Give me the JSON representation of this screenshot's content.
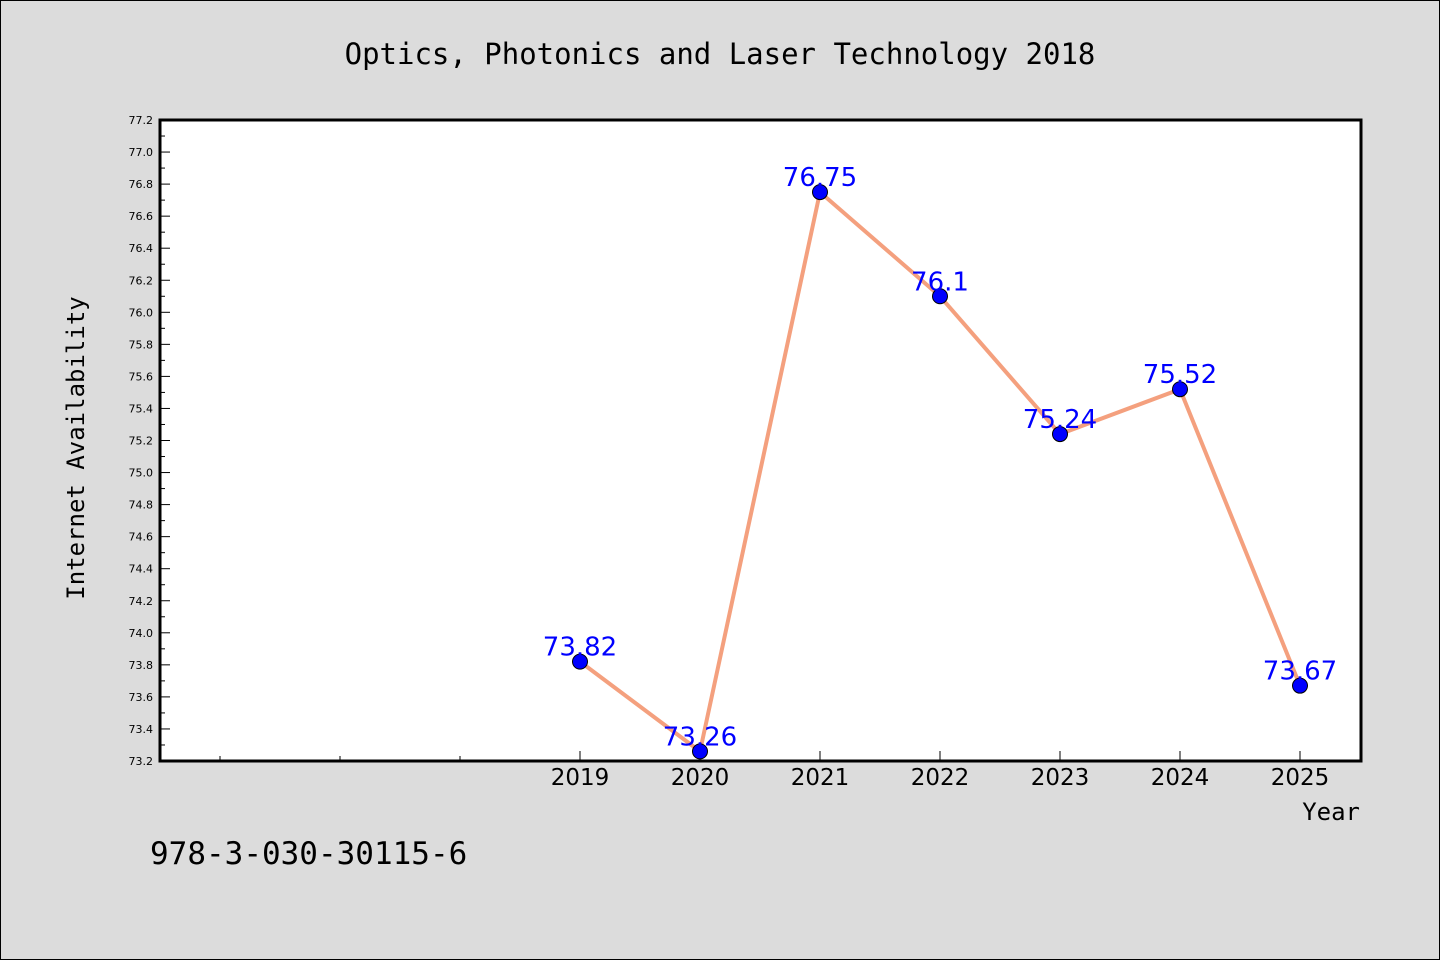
{
  "chart_data": {
    "type": "line",
    "title": "Optics, Photonics and Laser Technology 2018",
    "xlabel": "Year",
    "ylabel": "Internet Availability",
    "categories": [
      "2019",
      "2020",
      "2021",
      "2022",
      "2023",
      "2024",
      "2025"
    ],
    "series": [
      {
        "values": [
          73.82,
          73.26,
          76.75,
          76.1,
          75.24,
          75.52,
          73.67
        ]
      }
    ],
    "data_labels": [
      "73.82",
      "73.26",
      "76.75",
      "76.1",
      "75.24",
      "75.52",
      "73.67"
    ],
    "ylim": [
      73.2,
      77.2
    ],
    "yticks": [
      "73.2",
      "73.4",
      "73.6",
      "73.8",
      "74.0",
      "74.2",
      "74.4",
      "74.6",
      "74.8",
      "75.0",
      "75.2",
      "75.4",
      "75.6",
      "75.8",
      "76.0",
      "76.2",
      "76.4",
      "76.6",
      "76.8",
      "77.0",
      "77.2"
    ],
    "grid": false,
    "line_color": "#f4a07e",
    "marker_color": "#0000ff",
    "label_color": "#0000ff"
  },
  "footer": {
    "isbn": "978-3-030-30115-6"
  }
}
